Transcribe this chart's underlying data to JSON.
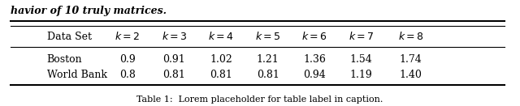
{
  "col_headers": [
    "Data Set",
    "k=2",
    "k=3",
    "k=4",
    "k=5",
    "k=6",
    "k=7",
    "k=8"
  ],
  "rows": [
    [
      "Boston",
      "0.9",
      "0.91",
      "1.02",
      "1.21",
      "1.36",
      "1.54",
      "1.74"
    ],
    [
      "World Bank",
      "0.8",
      "0.81",
      "0.81",
      "0.81",
      "0.94",
      "1.19",
      "1.40"
    ]
  ],
  "top_text": "havior of 10 truly matrices.",
  "caption": "Table 1:  Lorem placeholder for table label in caption.",
  "figsize": [
    6.4,
    1.31
  ],
  "dpi": 100,
  "background_color": "#ffffff",
  "font_size": 9.0,
  "caption_font_size": 8.0
}
